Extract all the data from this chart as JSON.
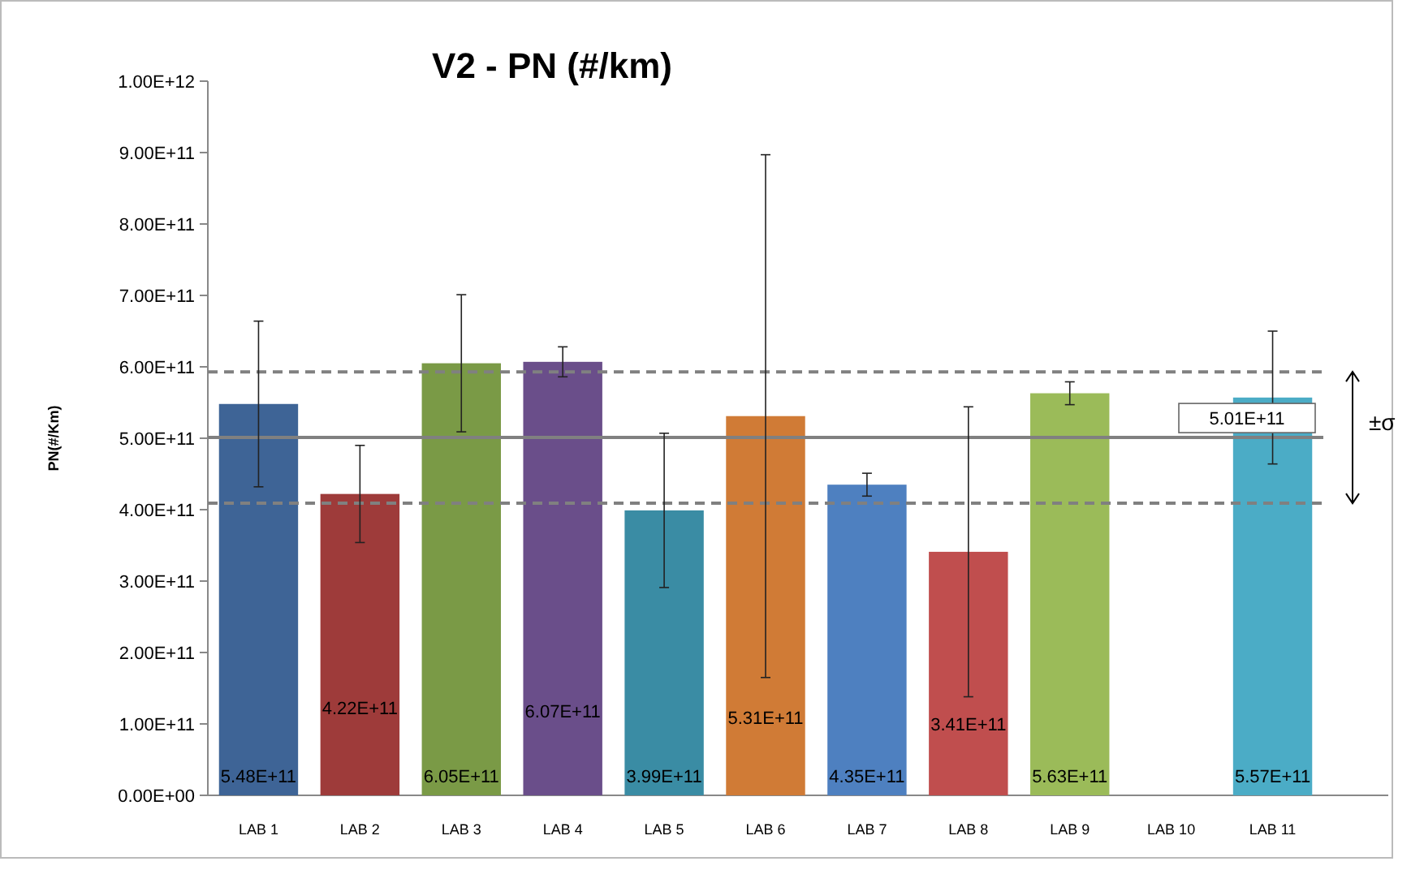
{
  "chart_data": {
    "type": "bar",
    "title": "V2 - PN (#/km)",
    "ylabel": "PN(#/Km)",
    "categories": [
      "LAB 1",
      "LAB 2",
      "LAB 3",
      "LAB 4",
      "LAB 5",
      "LAB 6",
      "LAB 7",
      "LAB 8",
      "LAB 9",
      "LAB 10",
      "LAB 11"
    ],
    "values": [
      548000000000.0,
      422000000000.0,
      605000000000.0,
      607000000000.0,
      399000000000.0,
      531000000000.0,
      435000000000.0,
      341000000000.0,
      563000000000.0,
      null,
      557000000000.0
    ],
    "colors": [
      "#3e6496",
      "#9e3b3a",
      "#7a9a46",
      "#6a4e8a",
      "#3a8ca4",
      "#d07b36",
      "#4e80c0",
      "#c04e4e",
      "#9bbb59",
      null,
      "#4bacc6"
    ],
    "errors": [
      116000000000.0,
      68000000000.0,
      96000000000.0,
      21000000000.0,
      108000000000.0,
      366000000000.0,
      16000000000.0,
      203000000000.0,
      16000000000.0,
      null,
      93000000000.0
    ],
    "value_labels": [
      "5.48E+11",
      "4.22E+11",
      "6.05E+11",
      "6.07E+11",
      "3.99E+11",
      "5.31E+11",
      "4.35E+11",
      "3.41E+11",
      "5.63E+11",
      null,
      "5.57E+11"
    ],
    "ylim": [
      0,
      1000000000000.0
    ],
    "yticks": [
      {
        "value": 0,
        "label": "0.00E+00"
      },
      {
        "value": 100000000000.0,
        "label": "1.00E+11"
      },
      {
        "value": 200000000000.0,
        "label": "2.00E+11"
      },
      {
        "value": 300000000000.0,
        "label": "3.00E+11"
      },
      {
        "value": 400000000000.0,
        "label": "4.00E+11"
      },
      {
        "value": 500000000000.0,
        "label": "5.00E+11"
      },
      {
        "value": 600000000000.0,
        "label": "6.00E+11"
      },
      {
        "value": 700000000000.0,
        "label": "7.00E+11"
      },
      {
        "value": 800000000000.0,
        "label": "8.00E+11"
      },
      {
        "value": 900000000000.0,
        "label": "9.00E+11"
      },
      {
        "value": 1000000000000.0,
        "label": "1.00E+12"
      }
    ],
    "ref_lines": [
      {
        "axis": "y",
        "value": 501000000000.0,
        "label": "5.01E+11",
        "color": "#808080",
        "line_style": "solid"
      },
      {
        "axis": "y",
        "value": 593000000000.0,
        "color": "#808080",
        "line_style": "dashed"
      },
      {
        "axis": "y",
        "value": 409000000000.0,
        "color": "#808080",
        "line_style": "dashed"
      }
    ],
    "annotations": [
      "±σ"
    ],
    "grid": false
  }
}
